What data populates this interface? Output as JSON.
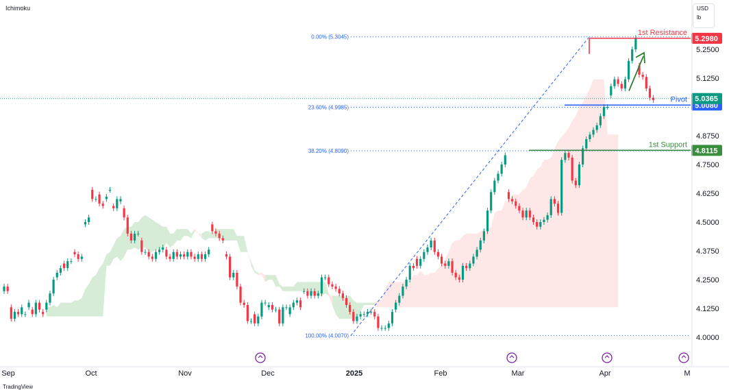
{
  "header": {
    "indicator": "Ichimoku"
  },
  "units": {
    "currency": "USD",
    "unit": "lb"
  },
  "logo": {
    "text": "TradingView"
  },
  "chart_data": {
    "type": "candlestick",
    "y_axis": {
      "ylim": [
        3.94,
        5.36
      ],
      "ticks": [
        "4.0000",
        "4.1250",
        "4.2500",
        "4.3750",
        "4.5000",
        "4.6250",
        "4.7500",
        "4.8750",
        "5.1250",
        "5.2500"
      ]
    },
    "x_axis": {
      "ticks": [
        "Sep",
        "Oct",
        "Nov",
        "Dec",
        "2025",
        "Feb",
        "Mar",
        "Apr",
        "M"
      ]
    },
    "fib_levels": [
      {
        "label": "0.00% (5.3045)",
        "value": 5.3045
      },
      {
        "label": "23.60% (4.9985)",
        "value": 4.9985
      },
      {
        "label": "38.20% (4.8090)",
        "value": 4.809
      },
      {
        "label": "100.00% (4.0070)",
        "value": 4.007
      }
    ],
    "levels": [
      {
        "name": "1st Resistance",
        "value": 5.298,
        "tag": "5.2980",
        "color": "#f23645"
      },
      {
        "name": "Pivot",
        "value": 5.008,
        "tag": "5.0080",
        "color": "#2962ff"
      },
      {
        "name": "1st Support",
        "value": 4.8115,
        "tag": "4.8115",
        "color": "#388e3c"
      }
    ],
    "last_price": {
      "value": 5.0365,
      "tag": "5.0365",
      "color": "#089981"
    },
    "colors": {
      "up": "#089981",
      "down": "#f23645",
      "cloud_bull": "#c8e6c9",
      "cloud_bear": "#fcd7d7"
    },
    "candles": [
      [
        4.2,
        4.22
      ],
      [
        4.22,
        4.2
      ],
      [
        4.13,
        4.08
      ],
      [
        4.08,
        4.11
      ],
      [
        4.11,
        4.1
      ],
      [
        4.1,
        4.13
      ],
      [
        4.1,
        4.1
      ],
      [
        4.13,
        4.15
      ],
      [
        4.12,
        4.1
      ],
      [
        4.1,
        4.15
      ],
      [
        4.15,
        4.12
      ],
      [
        4.11,
        4.1
      ],
      [
        4.12,
        4.15
      ],
      [
        4.15,
        4.19
      ],
      [
        4.19,
        4.25
      ],
      [
        4.26,
        4.28
      ],
      [
        4.28,
        4.3
      ],
      [
        4.32,
        4.3
      ],
      [
        4.3,
        4.33
      ],
      [
        4.33,
        4.33
      ],
      [
        4.37,
        4.36
      ],
      [
        4.36,
        4.34
      ],
      [
        4.34,
        4.35
      ],
      [
        4.49,
        4.5
      ],
      [
        4.5,
        4.52
      ],
      [
        4.64,
        4.6
      ],
      [
        4.6,
        4.6
      ],
      [
        4.62,
        4.58
      ],
      [
        4.58,
        4.57
      ],
      [
        4.6,
        4.61
      ],
      [
        4.64,
        4.64
      ],
      [
        4.57,
        4.56
      ],
      [
        4.56,
        4.6
      ],
      [
        4.59,
        4.6
      ],
      [
        4.56,
        4.52
      ],
      [
        4.52,
        4.45
      ],
      [
        4.45,
        4.42
      ],
      [
        4.42,
        4.45
      ],
      [
        4.45,
        4.45
      ],
      [
        4.42,
        4.37
      ],
      [
        4.37,
        4.37
      ],
      [
        4.37,
        4.35
      ],
      [
        4.35,
        4.34
      ],
      [
        4.34,
        4.37
      ],
      [
        4.37,
        4.38
      ],
      [
        4.38,
        4.39
      ],
      [
        4.38,
        4.35
      ],
      [
        4.35,
        4.34
      ],
      [
        4.34,
        4.37
      ],
      [
        4.37,
        4.35
      ],
      [
        4.35,
        4.36
      ],
      [
        4.36,
        4.35
      ],
      [
        4.35,
        4.37
      ],
      [
        4.37,
        4.35
      ],
      [
        4.35,
        4.34
      ],
      [
        4.34,
        4.36
      ],
      [
        4.36,
        4.34
      ],
      [
        4.34,
        4.36
      ],
      [
        4.36,
        4.38
      ],
      [
        4.49,
        4.46
      ],
      [
        4.46,
        4.45
      ],
      [
        4.45,
        4.43
      ],
      [
        4.43,
        4.42
      ],
      [
        4.36,
        4.35
      ],
      [
        4.35,
        4.26
      ],
      [
        4.26,
        4.28
      ],
      [
        4.28,
        4.22
      ],
      [
        4.22,
        4.15
      ],
      [
        4.15,
        4.14
      ],
      [
        4.14,
        4.07
      ],
      [
        4.07,
        4.07
      ],
      [
        4.1,
        4.06
      ],
      [
        4.06,
        4.09
      ],
      [
        4.09,
        4.15
      ],
      [
        4.15,
        4.15
      ],
      [
        4.13,
        4.14
      ],
      [
        4.14,
        4.12
      ],
      [
        4.12,
        4.12
      ],
      [
        4.12,
        4.06
      ],
      [
        4.06,
        4.13
      ],
      [
        4.13,
        4.13
      ],
      [
        4.1,
        4.13
      ],
      [
        4.13,
        4.15
      ],
      [
        4.15,
        4.16
      ],
      [
        4.16,
        4.13
      ],
      [
        4.2,
        4.2
      ],
      [
        4.2,
        4.18
      ],
      [
        4.18,
        4.2
      ],
      [
        4.2,
        4.18
      ],
      [
        4.18,
        4.19
      ],
      [
        4.19,
        4.26
      ],
      [
        4.26,
        4.26
      ],
      [
        4.26,
        4.23
      ],
      [
        4.23,
        4.22
      ],
      [
        4.22,
        4.21
      ],
      [
        4.21,
        4.19
      ],
      [
        4.19,
        4.17
      ],
      [
        4.17,
        4.14
      ],
      [
        4.14,
        4.11
      ],
      [
        4.11,
        4.07
      ],
      [
        4.07,
        4.09
      ],
      [
        4.09,
        4.1
      ],
      [
        4.1,
        4.1
      ],
      [
        4.1,
        4.11
      ],
      [
        4.11,
        4.11
      ],
      [
        4.11,
        4.09
      ],
      [
        4.09,
        4.04
      ],
      [
        4.04,
        4.04
      ],
      [
        4.04,
        4.04
      ],
      [
        4.04,
        4.06
      ],
      [
        4.06,
        4.11
      ],
      [
        4.12,
        4.15
      ],
      [
        4.15,
        4.18
      ],
      [
        4.18,
        4.22
      ],
      [
        4.22,
        4.25
      ],
      [
        4.25,
        4.31
      ],
      [
        4.31,
        4.3
      ],
      [
        4.34,
        4.31
      ],
      [
        4.31,
        4.34
      ],
      [
        4.34,
        4.37
      ],
      [
        4.37,
        4.39
      ],
      [
        4.39,
        4.42
      ],
      [
        4.42,
        4.37
      ],
      [
        4.37,
        4.35
      ],
      [
        4.35,
        4.32
      ],
      [
        4.32,
        4.31
      ],
      [
        4.31,
        4.33
      ],
      [
        4.33,
        4.28
      ],
      [
        4.28,
        4.26
      ],
      [
        4.26,
        4.25
      ],
      [
        4.25,
        4.31
      ],
      [
        4.31,
        4.3
      ],
      [
        4.3,
        4.32
      ],
      [
        4.32,
        4.35
      ],
      [
        4.35,
        4.38
      ],
      [
        4.38,
        4.42
      ],
      [
        4.42,
        4.46
      ],
      [
        4.46,
        4.55
      ],
      [
        4.55,
        4.63
      ],
      [
        4.63,
        4.68
      ],
      [
        4.68,
        4.71
      ],
      [
        4.71,
        4.75
      ],
      [
        4.75,
        4.79
      ],
      [
        4.63,
        4.6
      ],
      [
        4.6,
        4.59
      ],
      [
        4.59,
        4.57
      ],
      [
        4.57,
        4.55
      ],
      [
        4.55,
        4.52
      ],
      [
        4.52,
        4.55
      ],
      [
        4.55,
        4.52
      ],
      [
        4.52,
        4.5
      ],
      [
        4.5,
        4.48
      ],
      [
        4.48,
        4.5
      ],
      [
        4.5,
        4.51
      ],
      [
        4.51,
        4.53
      ],
      [
        4.53,
        4.6
      ],
      [
        4.6,
        4.58
      ],
      [
        4.58,
        4.54
      ],
      [
        4.54,
        4.77
      ],
      [
        4.77,
        4.8
      ],
      [
        4.8,
        4.78
      ],
      [
        4.78,
        4.68
      ],
      [
        4.68,
        4.66
      ],
      [
        4.66,
        4.75
      ],
      [
        4.75,
        4.82
      ],
      [
        4.82,
        4.86
      ],
      [
        4.86,
        4.88
      ],
      [
        4.88,
        4.9
      ],
      [
        4.9,
        4.92
      ],
      [
        4.92,
        4.96
      ],
      [
        4.96,
        5.0
      ],
      [
        5.0,
        5.0
      ],
      [
        5.05,
        5.09
      ],
      [
        5.09,
        5.12
      ],
      [
        5.12,
        5.1
      ],
      [
        5.1,
        5.08
      ],
      [
        5.08,
        5.12
      ],
      [
        5.12,
        5.2
      ],
      [
        5.2,
        5.25
      ],
      [
        5.25,
        5.3
      ],
      [
        5.18,
        5.14
      ],
      [
        5.14,
        5.13
      ],
      [
        5.13,
        5.08
      ],
      [
        5.08,
        5.04
      ],
      [
        5.04,
        5.03
      ]
    ],
    "cloud": [
      [
        4.13,
        4.09
      ],
      [
        4.13,
        4.09
      ],
      [
        4.14,
        4.09
      ],
      [
        4.13,
        4.09
      ],
      [
        4.15,
        4.09
      ],
      [
        4.15,
        4.09
      ],
      [
        4.15,
        4.09
      ],
      [
        4.15,
        4.09
      ],
      [
        4.16,
        4.09
      ],
      [
        4.16,
        4.09
      ],
      [
        4.17,
        4.09
      ],
      [
        4.21,
        4.09
      ],
      [
        4.23,
        4.09
      ],
      [
        4.26,
        4.09
      ],
      [
        4.27,
        4.09
      ],
      [
        4.3,
        4.09
      ],
      [
        4.32,
        4.09
      ],
      [
        4.36,
        4.31
      ],
      [
        4.37,
        4.31
      ],
      [
        4.4,
        4.34
      ],
      [
        4.43,
        4.35
      ],
      [
        4.44,
        4.33
      ],
      [
        4.47,
        4.35
      ],
      [
        4.48,
        4.38
      ],
      [
        4.48,
        4.38
      ],
      [
        4.5,
        4.39
      ],
      [
        4.5,
        4.38
      ],
      [
        4.52,
        4.39
      ],
      [
        4.53,
        4.39
      ],
      [
        4.52,
        4.37
      ],
      [
        4.51,
        4.37
      ],
      [
        4.5,
        4.38
      ],
      [
        4.49,
        4.38
      ],
      [
        4.48,
        4.38
      ],
      [
        4.48,
        4.41
      ],
      [
        4.45,
        4.39
      ],
      [
        4.45,
        4.4
      ],
      [
        4.47,
        4.42
      ],
      [
        4.47,
        4.42
      ],
      [
        4.47,
        4.44
      ],
      [
        4.47,
        4.44
      ],
      [
        4.45,
        4.43
      ],
      [
        4.46,
        4.47
      ],
      [
        4.45,
        4.45
      ],
      [
        4.45,
        4.43
      ],
      [
        4.46,
        4.42
      ],
      [
        4.46,
        4.43
      ],
      [
        4.45,
        4.43
      ],
      [
        4.47,
        4.43
      ],
      [
        4.47,
        4.43
      ],
      [
        4.47,
        4.42
      ],
      [
        4.47,
        4.42
      ],
      [
        4.47,
        4.42
      ],
      [
        4.47,
        4.42
      ],
      [
        4.44,
        4.42
      ],
      [
        4.44,
        4.37
      ],
      [
        4.44,
        4.37
      ],
      [
        4.37,
        4.37
      ],
      [
        4.33,
        4.31
      ],
      [
        4.29,
        4.28
      ],
      [
        4.27,
        4.28
      ],
      [
        4.27,
        4.28
      ],
      [
        4.27,
        4.24
      ],
      [
        4.27,
        4.25
      ],
      [
        4.27,
        4.25
      ],
      [
        4.27,
        4.22
      ],
      [
        4.23,
        4.22
      ],
      [
        4.22,
        4.2
      ],
      [
        4.22,
        4.2
      ],
      [
        4.22,
        4.2
      ],
      [
        4.22,
        4.2
      ],
      [
        4.24,
        4.2
      ],
      [
        4.24,
        4.2
      ],
      [
        4.24,
        4.2
      ],
      [
        4.24,
        4.2
      ],
      [
        4.24,
        4.2
      ],
      [
        4.24,
        4.18
      ],
      [
        4.24,
        4.18
      ],
      [
        4.24,
        4.18
      ],
      [
        4.24,
        4.19
      ],
      [
        4.18,
        4.19
      ],
      [
        4.18,
        4.14
      ],
      [
        4.18,
        4.1
      ],
      [
        4.18,
        4.08
      ],
      [
        4.18,
        4.08
      ],
      [
        4.18,
        4.08
      ],
      [
        4.18,
        4.08
      ],
      [
        4.16,
        4.08
      ],
      [
        4.15,
        4.08
      ],
      [
        4.15,
        4.11
      ],
      [
        4.15,
        4.14
      ],
      [
        4.15,
        4.14
      ],
      [
        4.15,
        4.14
      ],
      [
        4.14,
        4.15
      ],
      [
        4.13,
        4.16
      ],
      [
        4.13,
        4.16
      ],
      [
        4.13,
        4.21
      ],
      [
        4.13,
        4.24
      ],
      [
        4.13,
        4.24
      ],
      [
        4.13,
        4.24
      ],
      [
        4.13,
        4.24
      ],
      [
        4.13,
        4.24
      ],
      [
        4.13,
        4.25
      ],
      [
        4.13,
        4.24
      ],
      [
        4.13,
        4.27
      ],
      [
        4.13,
        4.27
      ],
      [
        4.13,
        4.29
      ],
      [
        4.13,
        4.27
      ],
      [
        4.13,
        4.27
      ],
      [
        4.13,
        4.28
      ],
      [
        4.13,
        4.28
      ],
      [
        4.13,
        4.3
      ],
      [
        4.13,
        4.31
      ],
      [
        4.13,
        4.34
      ],
      [
        4.13,
        4.37
      ],
      [
        4.13,
        4.41
      ],
      [
        4.13,
        4.42
      ],
      [
        4.13,
        4.42
      ],
      [
        4.13,
        4.44
      ],
      [
        4.13,
        4.45
      ],
      [
        4.13,
        4.45
      ],
      [
        4.13,
        4.45
      ],
      [
        4.13,
        4.45
      ],
      [
        4.13,
        4.46
      ],
      [
        4.13,
        4.47
      ],
      [
        4.13,
        4.47
      ],
      [
        4.13,
        4.48
      ],
      [
        4.13,
        4.54
      ],
      [
        4.13,
        4.55
      ],
      [
        4.13,
        4.55
      ],
      [
        4.13,
        4.59
      ],
      [
        4.13,
        4.59
      ],
      [
        4.13,
        4.62
      ],
      [
        4.13,
        4.62
      ],
      [
        4.13,
        4.62
      ],
      [
        4.13,
        4.64
      ],
      [
        4.13,
        4.65
      ],
      [
        4.13,
        4.69
      ],
      [
        4.13,
        4.7
      ],
      [
        4.13,
        4.73
      ],
      [
        4.13,
        4.74
      ],
      [
        4.13,
        4.77
      ],
      [
        4.13,
        4.77
      ],
      [
        4.13,
        4.78
      ],
      [
        4.13,
        4.82
      ],
      [
        4.13,
        4.85
      ],
      [
        4.13,
        4.87
      ],
      [
        4.13,
        4.89
      ],
      [
        4.13,
        4.91
      ],
      [
        4.13,
        4.94
      ],
      [
        4.13,
        4.96
      ],
      [
        4.13,
        5.0
      ],
      [
        4.13,
        5.02
      ],
      [
        4.13,
        5.05
      ],
      [
        4.13,
        5.08
      ],
      [
        4.13,
        5.12
      ],
      [
        4.13,
        5.12
      ],
      [
        4.13,
        5.12
      ],
      [
        4.13,
        5.12
      ],
      [
        4.13,
        4.88
      ],
      [
        4.13,
        4.88
      ],
      [
        4.13,
        4.88
      ],
      [
        4.13,
        4.88
      ]
    ]
  }
}
